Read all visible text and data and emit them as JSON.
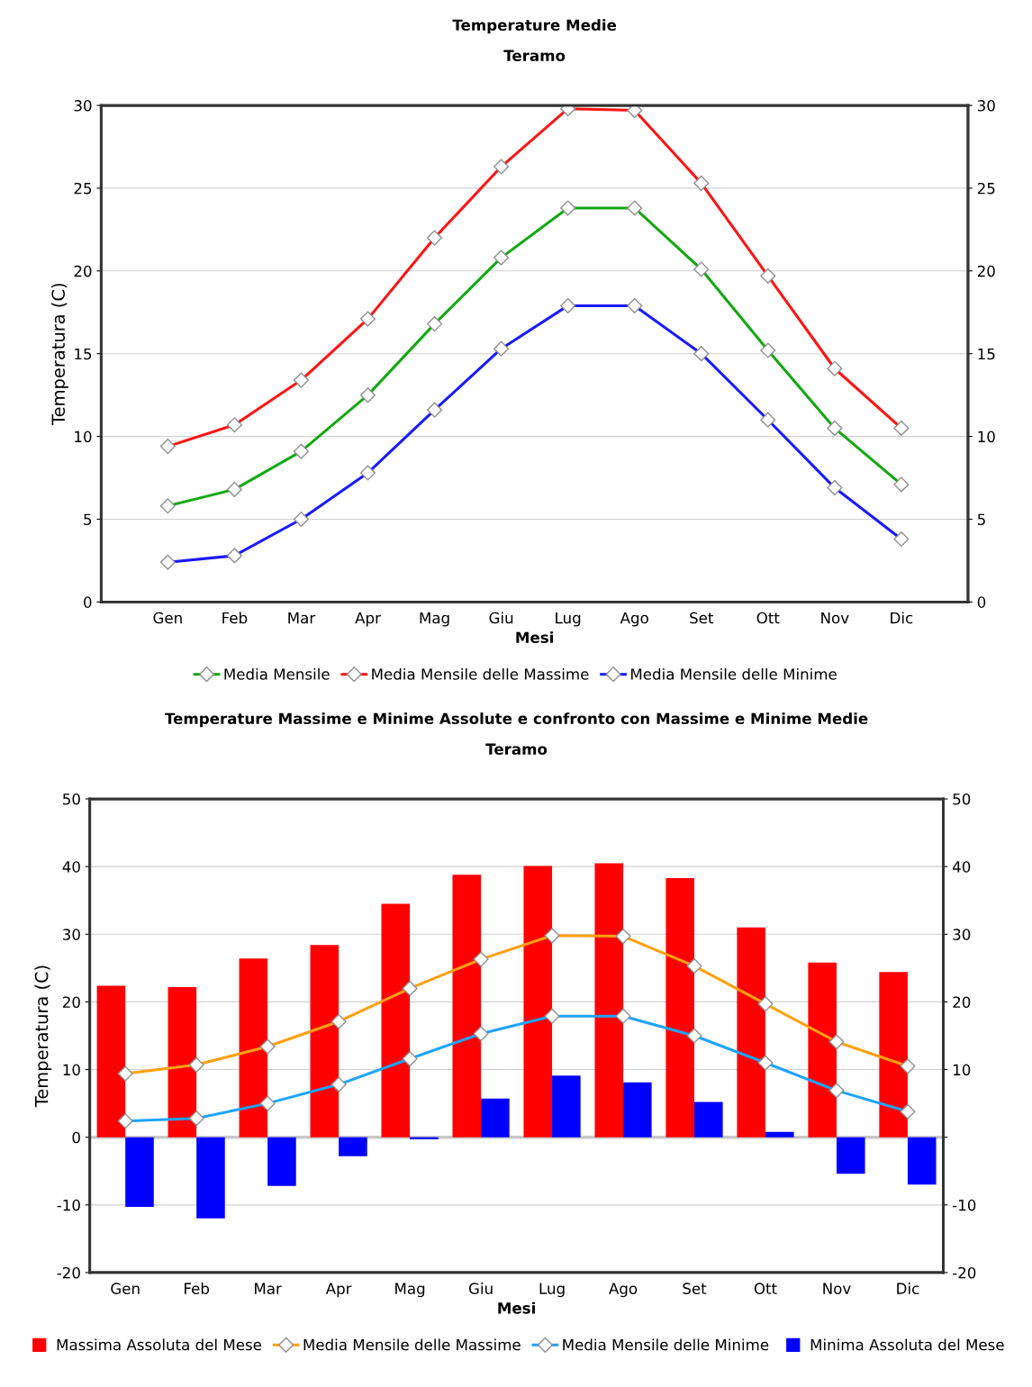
{
  "chart_data": [
    {
      "type": "line",
      "title": "Temperature Medie",
      "subtitle": "Teramo",
      "xlabel": "Mesi",
      "ylabel": "Temperatura (C)",
      "categories": [
        "Gen",
        "Feb",
        "Mar",
        "Apr",
        "Mag",
        "Giu",
        "Lug",
        "Ago",
        "Set",
        "Ott",
        "Nov",
        "Dic"
      ],
      "series": [
        {
          "name": "Media Mensile",
          "color": "#14a814",
          "values": [
            5.8,
            6.8,
            9.1,
            12.5,
            16.8,
            20.8,
            23.8,
            23.8,
            20.1,
            15.2,
            10.5,
            7.1
          ]
        },
        {
          "name": "Media Mensile delle Massime",
          "color": "#ff1414",
          "values": [
            9.4,
            10.7,
            13.4,
            17.1,
            22.0,
            26.3,
            29.8,
            29.7,
            25.3,
            19.7,
            14.1,
            10.5
          ]
        },
        {
          "name": "Media Mensile delle Minime",
          "color": "#1a1aff",
          "values": [
            2.4,
            2.8,
            5.0,
            7.8,
            11.6,
            15.3,
            17.9,
            17.9,
            15.0,
            11.0,
            6.9,
            3.8
          ]
        }
      ],
      "ylim": [
        0,
        30
      ],
      "yticks": [
        0,
        5,
        10,
        15,
        20,
        25,
        30
      ],
      "y2lim": [
        0,
        30
      ],
      "y2ticks": [
        0,
        5,
        10,
        15,
        20,
        25,
        30
      ],
      "grid": "y",
      "legend": "bottom",
      "marker": "diamond",
      "line_style": "solid"
    },
    {
      "type": "bar",
      "title": "Temperature Massime e Minime Assolute e confronto con Massime e Minime Medie",
      "subtitle": "Teramo",
      "xlabel": "Mesi",
      "ylabel": "Temperatura (C)",
      "categories": [
        "Gen",
        "Feb",
        "Mar",
        "Apr",
        "Mag",
        "Giu",
        "Lug",
        "Ago",
        "Set",
        "Ott",
        "Nov",
        "Dic"
      ],
      "series": [
        {
          "name": "Massima Assoluta del Mese",
          "type": "bar",
          "color": "#ff0000",
          "values": [
            22.4,
            22.2,
            26.4,
            28.4,
            34.5,
            38.8,
            40.1,
            40.5,
            38.3,
            31.0,
            25.8,
            24.4
          ]
        },
        {
          "name": "Media Mensile delle Massime",
          "type": "line",
          "color": "#ffa010",
          "values": [
            9.4,
            10.7,
            13.4,
            17.1,
            22.0,
            26.3,
            29.8,
            29.7,
            25.3,
            19.7,
            14.1,
            10.5
          ]
        },
        {
          "name": "Media Mensile delle Minime",
          "type": "line",
          "color": "#1ea4ff",
          "values": [
            2.4,
            2.8,
            5.0,
            7.8,
            11.6,
            15.3,
            17.9,
            17.9,
            15.0,
            11.0,
            6.9,
            3.8
          ]
        },
        {
          "name": "Minima Assoluta del Mese",
          "type": "bar",
          "color": "#0000ff",
          "values": [
            -10.3,
            -12.0,
            -7.2,
            -2.8,
            -0.3,
            5.7,
            9.1,
            8.1,
            5.2,
            0.8,
            -5.4,
            -7.0
          ]
        }
      ],
      "ylim": [
        -20,
        50
      ],
      "yticks": [
        -20,
        -10,
        0,
        10,
        20,
        30,
        40,
        50
      ],
      "y2lim": [
        -20,
        50
      ],
      "y2ticks": [
        -20,
        -10,
        {
          "value": 0,
          "label": null
        },
        10,
        20,
        30,
        40,
        50
      ],
      "ref_lines": [
        {
          "axis": "y",
          "value": 0,
          "color": "#c8c8c8"
        }
      ],
      "grid": "y",
      "legend": "bottom",
      "marker": "diamond",
      "line_style": "solid"
    }
  ]
}
